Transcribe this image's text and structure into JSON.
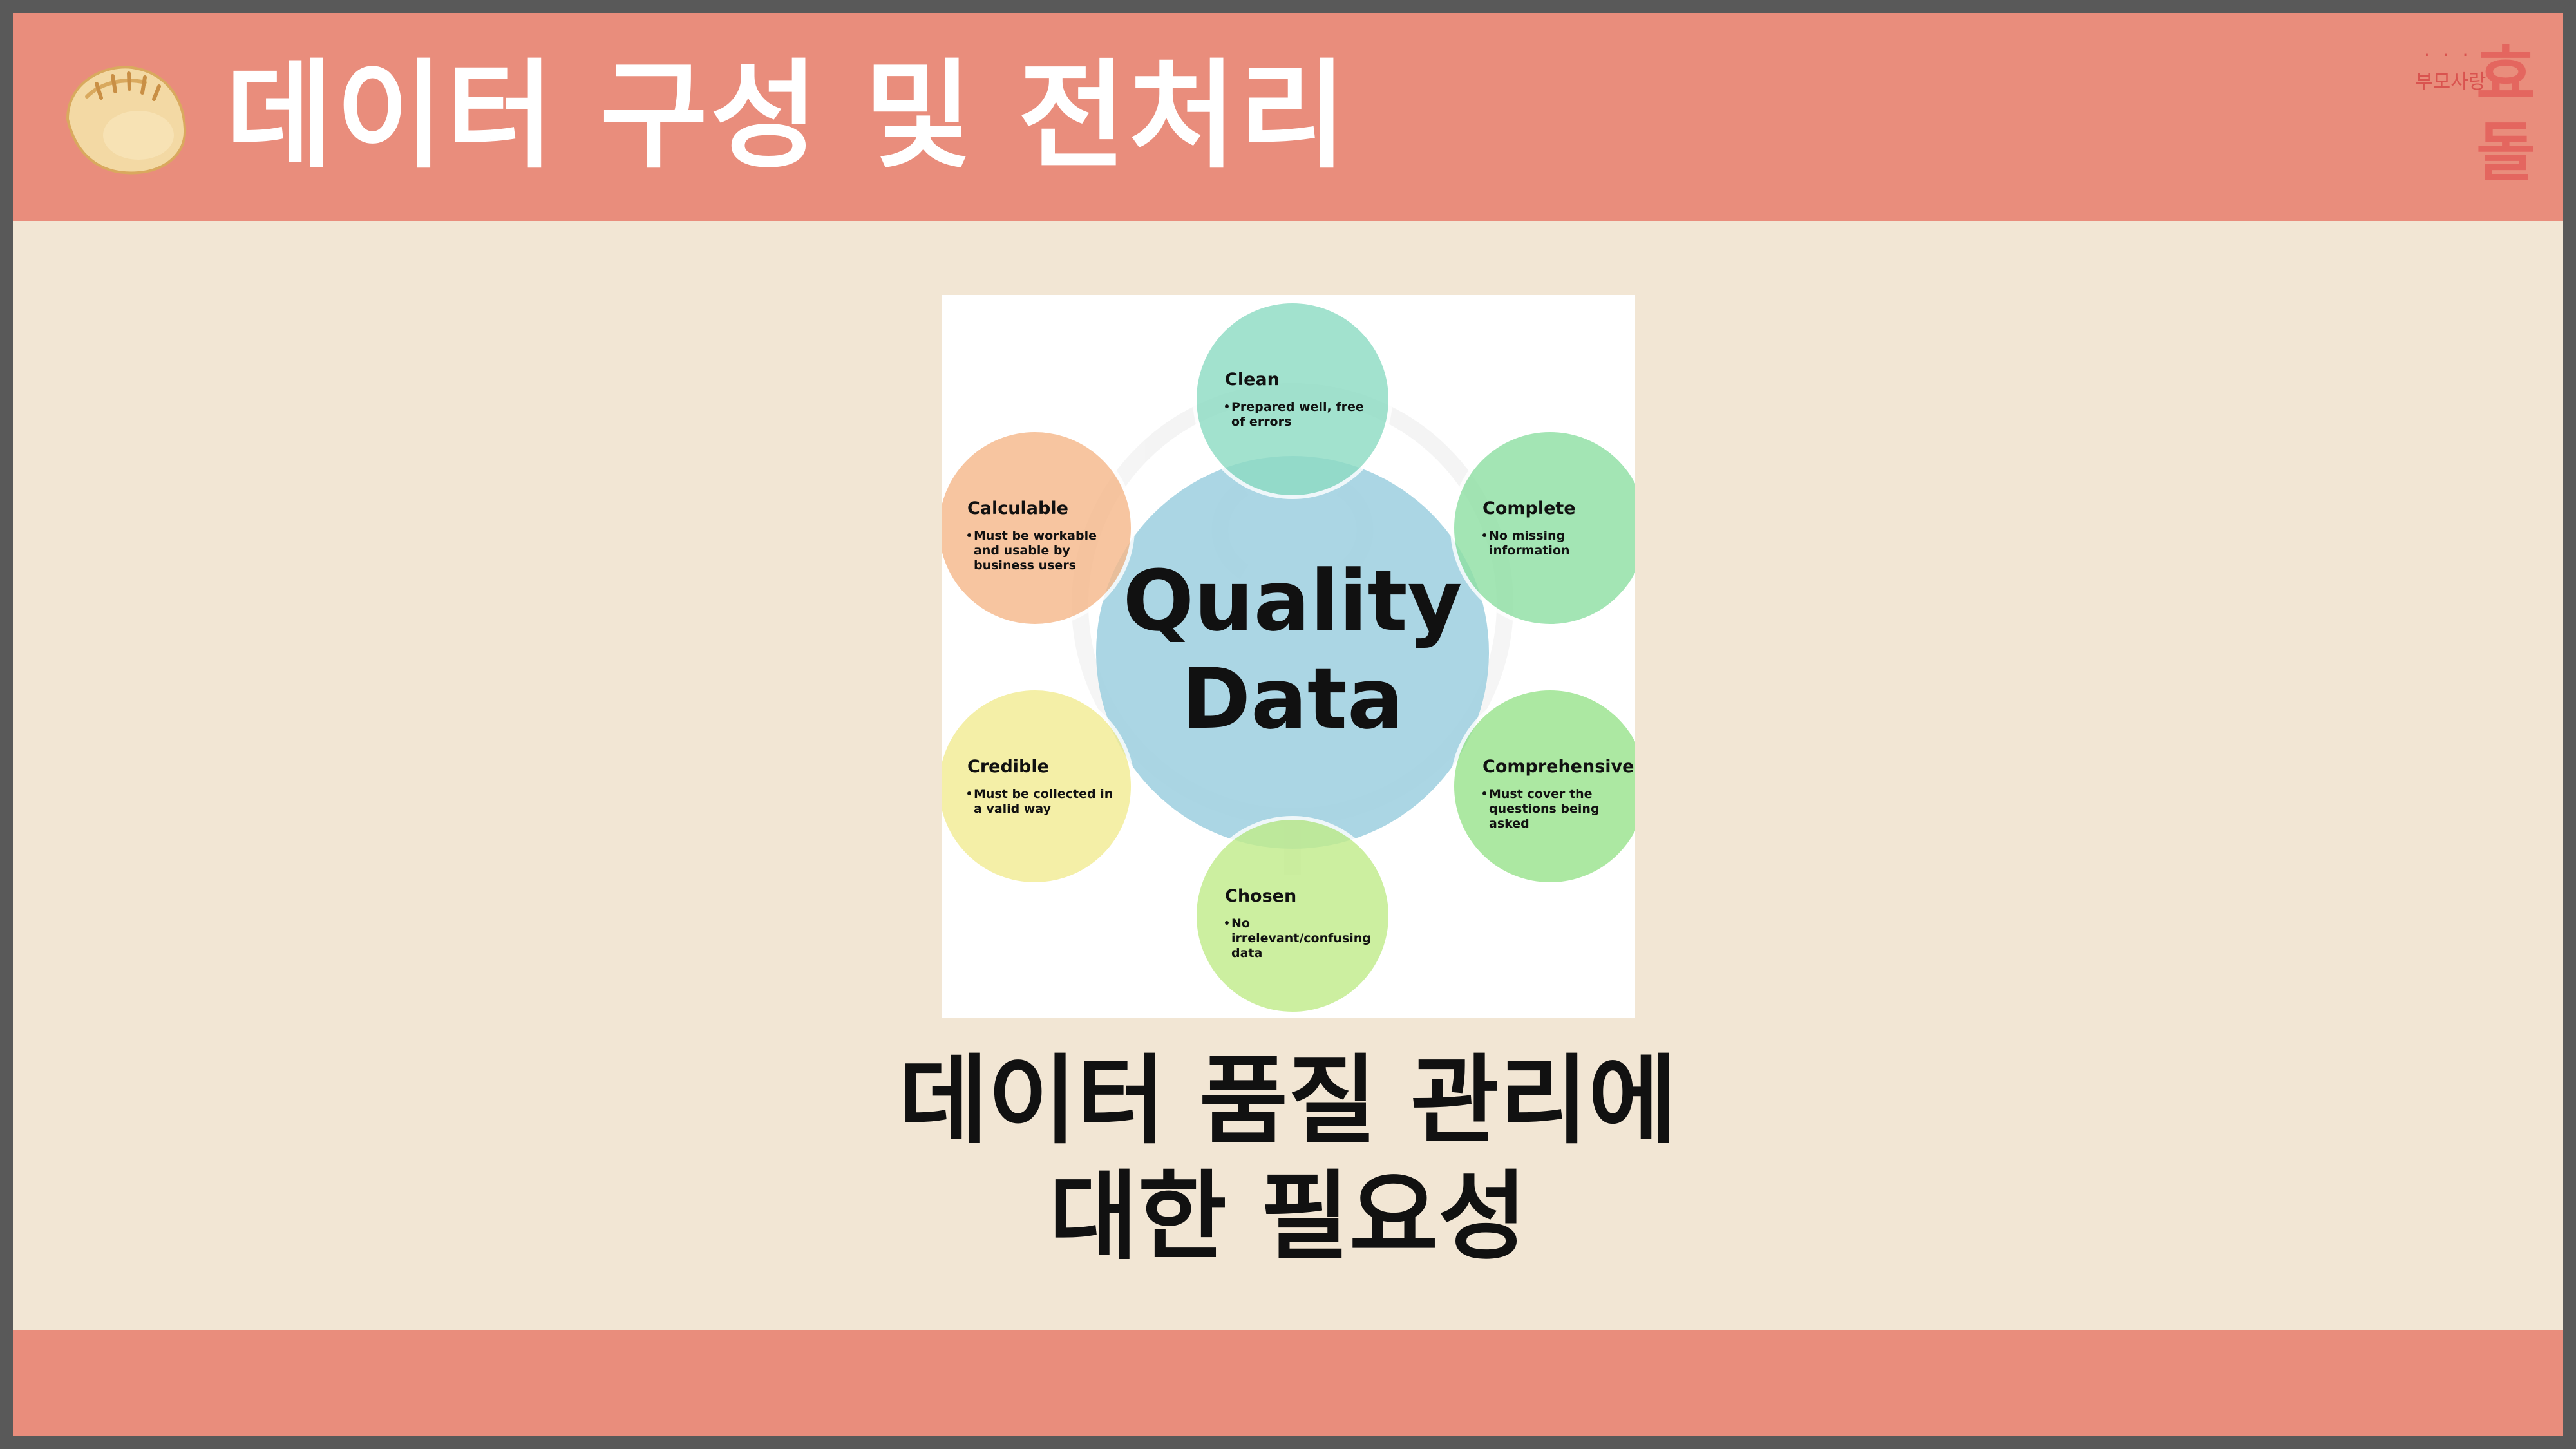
{
  "header": {
    "title": "데이터 구성 및 전처리",
    "icon": "dumpling-icon",
    "accent_color": "#E98D7C"
  },
  "logo": {
    "dots": "· · · ·",
    "small_text": "부모사랑",
    "big_text": "효돌"
  },
  "diagram": {
    "center_line1": "Quality",
    "center_line2": "Data",
    "nodes": [
      {
        "title": "Clean",
        "desc": [
          "Prepared well, free",
          "of errors"
        ],
        "color": "#8EDCC4"
      },
      {
        "title": "Complete",
        "desc": [
          "No missing",
          "information"
        ],
        "color": "#8FE0A4"
      },
      {
        "title": "Comprehensive",
        "desc": [
          "Must cover the",
          "questions being",
          "asked"
        ],
        "color": "#9BE48E"
      },
      {
        "title": "Chosen",
        "desc": [
          "No",
          "irrelevant/confusing",
          "data"
        ],
        "color": "#C2EC8C"
      },
      {
        "title": "Credible",
        "desc": [
          "Must be collected in",
          "a valid way"
        ],
        "color": "#F2EC94"
      },
      {
        "title": "Calculable",
        "desc": [
          "Must be workable",
          "and usable by",
          "business users"
        ],
        "color": "#F6B98C"
      }
    ]
  },
  "caption": {
    "line1": "데이터 품질 관리에",
    "line2": "대한 필요성"
  }
}
